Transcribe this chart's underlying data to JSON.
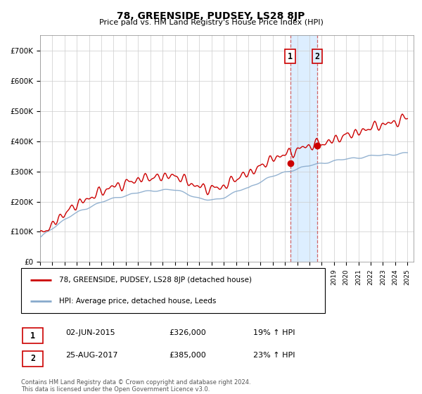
{
  "title": "78, GREENSIDE, PUDSEY, LS28 8JP",
  "subtitle": "Price paid vs. HM Land Registry's House Price Index (HPI)",
  "legend_line1": "78, GREENSIDE, PUDSEY, LS28 8JP (detached house)",
  "legend_line2": "HPI: Average price, detached house, Leeds",
  "annotation1_label": "1",
  "annotation1_date": "02-JUN-2015",
  "annotation1_price": "£326,000",
  "annotation1_hpi": "19% ↑ HPI",
  "annotation2_label": "2",
  "annotation2_date": "25-AUG-2017",
  "annotation2_price": "£385,000",
  "annotation2_hpi": "23% ↑ HPI",
  "footer": "Contains HM Land Registry data © Crown copyright and database right 2024.\nThis data is licensed under the Open Government Licence v3.0.",
  "red_color": "#cc0000",
  "blue_color": "#88aacc",
  "highlight_color": "#ddeeff",
  "ylim_min": 0,
  "ylim_max": 750000,
  "t1_year": 2015.42,
  "t1_price": 326000,
  "t2_year": 2017.63,
  "t2_price": 385000
}
